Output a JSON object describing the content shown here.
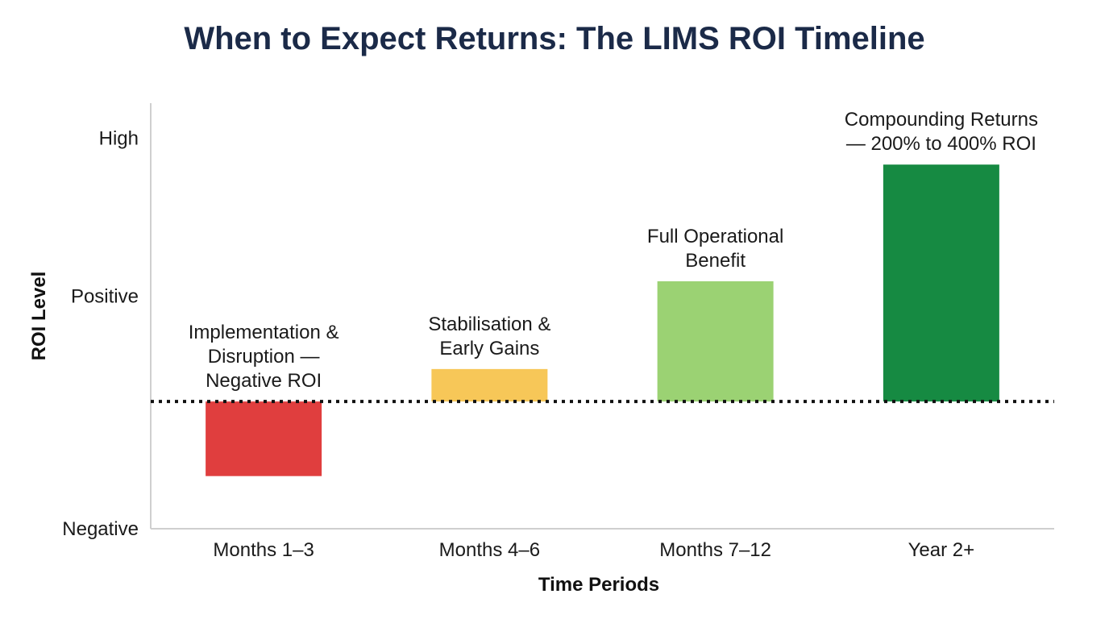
{
  "chart_data": {
    "type": "bar",
    "title": "When to Expect Returns: The LIMS ROI Timeline",
    "xlabel": "Time Periods",
    "ylabel": "ROI Level",
    "y_tick_labels": [
      {
        "label": "High",
        "value": 3.0
      },
      {
        "label": "Positive",
        "value": 1.2
      },
      {
        "label": "Negative",
        "value": -1.45
      }
    ],
    "ylim": [
      -1.45,
      3.4
    ],
    "baseline": 0,
    "baseline_style": "dotted",
    "grid": false,
    "categories": [
      "Months 1–3",
      "Months 4–6",
      "Months 7–12",
      "Year 2+"
    ],
    "values": [
      -0.85,
      0.37,
      1.37,
      2.7
    ],
    "bar_labels": [
      [
        "Implementation &",
        "Disruption —",
        "Negative ROI"
      ],
      [
        "Stabilisation &",
        "Early Gains"
      ],
      [
        "Full Operational",
        "Benefit"
      ],
      [
        "Compounding Returns",
        "— 200% to 400% ROI"
      ]
    ],
    "colors": [
      "#e03e3e",
      "#f7c758",
      "#9bd273",
      "#168a42"
    ]
  }
}
